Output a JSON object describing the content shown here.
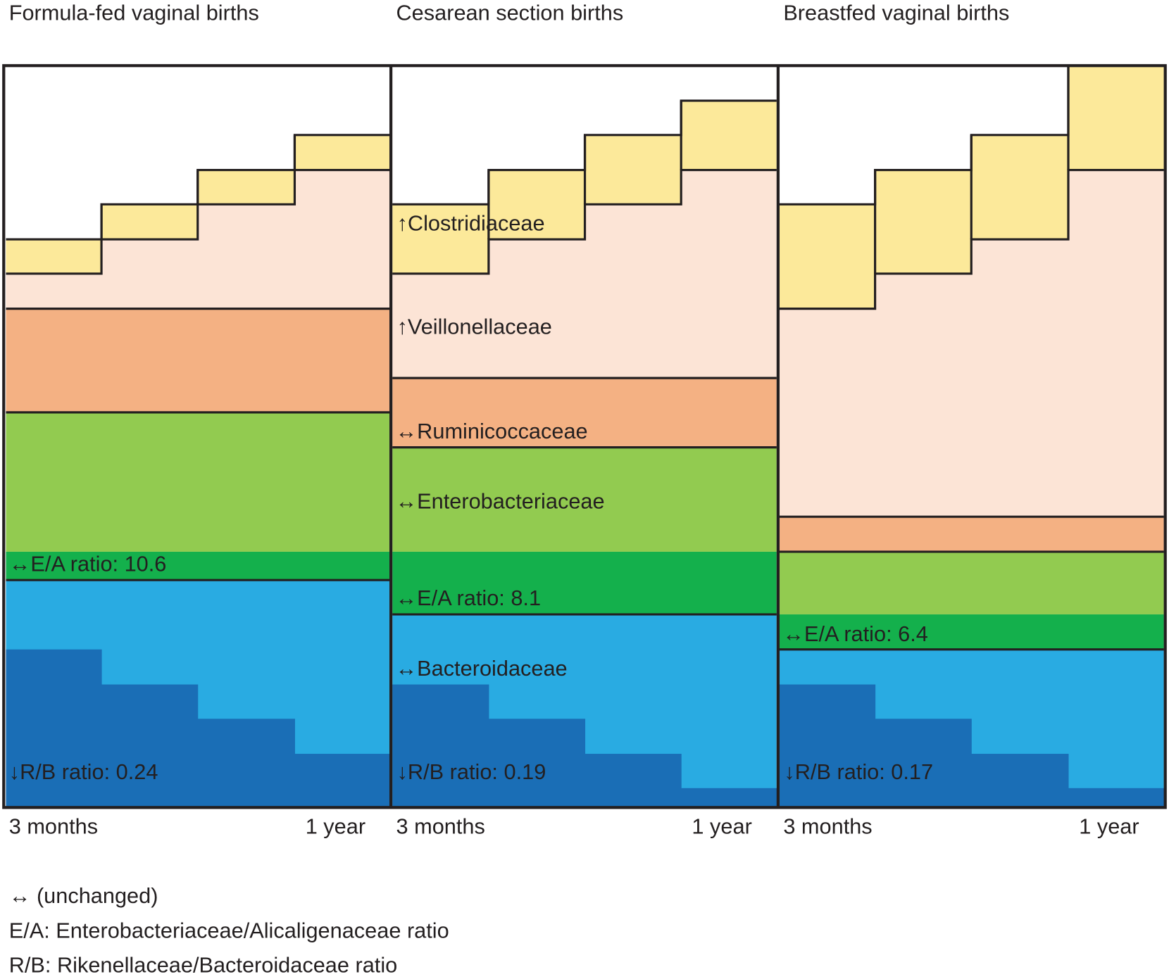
{
  "colors": {
    "clostridiaceae": "#FCE99A",
    "veillonellaceae": "#FCE4D6",
    "ruminicoccaceae": "#F4B183",
    "enterobacteriaceae": "#92CB50",
    "alcaligenaceae": "#14B04C",
    "bacteroidaceae": "#29ABE2",
    "rikenellaceae": "#1A6EB6",
    "outline": "#231f20"
  },
  "panels": [
    {
      "title": "Formula-fed vaginal births",
      "x_start": "3 months",
      "x_end": "1 year",
      "labels": {
        "ea": "↔E/A ratio:  10.6",
        "rb": "↓R/B ratio:  0.24"
      }
    },
    {
      "title": "Cesarean section births",
      "x_start": "3 months",
      "x_end": "1 year",
      "labels": {
        "clostridiaceae": "↑Clostridiaceae",
        "veillonellaceae": "↑Veillonellaceae",
        "ruminicoccaceae": "↔Ruminicoccaceae",
        "enterobacteriaceae": "↔Enterobacteriaceae",
        "ea": "↔E/A ratio:  8.1",
        "bacteroidaceae": "↔Bacteroidaceae",
        "rb": "↓R/B ratio:  0.19"
      }
    },
    {
      "title": "Breastfed vaginal births",
      "x_start": "3 months",
      "x_end": "1 year",
      "labels": {
        "ea": "↔E/A ratio:  6.4",
        "rb": "↓R/B ratio:  0.17"
      }
    }
  ],
  "legend": [
    "↔ (unchanged)",
    "E/A: Enterobacteriaceae/Alicaligenaceae ratio",
    "R/B: Rikenellaceae/Bacteroidaceae ratio"
  ]
}
